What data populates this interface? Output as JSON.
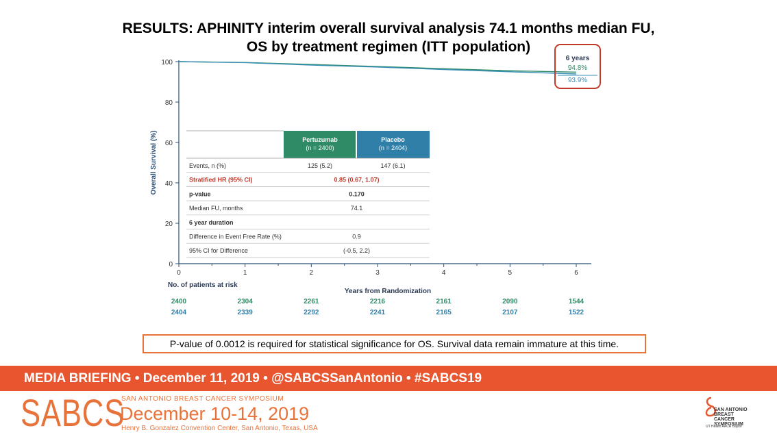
{
  "slide": {
    "title_line1": "RESULTS: APHINITY interim overall survival analysis 74.1 months median FU,",
    "title_line2": "OS by treatment regimen (ITT population)",
    "note": "P-value of 0.0012 is required for statistical significance for OS. Survival data remain immature at this time."
  },
  "chart_data": {
    "type": "line",
    "ylabel": "Overall Survival (%)",
    "xlabel": "Years from Randomization",
    "ylim": [
      0,
      100
    ],
    "xlim": [
      0,
      6
    ],
    "yticks": [
      0,
      20,
      40,
      60,
      80,
      100
    ],
    "xticks": [
      0,
      1,
      2,
      3,
      4,
      5,
      6
    ],
    "series": [
      {
        "name": "Pertuzumab",
        "color": "#2e8b66",
        "x": [
          0,
          1,
          2,
          3,
          4,
          5,
          6
        ],
        "values": [
          100,
          99.6,
          98.6,
          97.6,
          96.5,
          95.5,
          94.8
        ]
      },
      {
        "name": "Placebo",
        "color": "#3a8fb7",
        "x": [
          0,
          1,
          2,
          3,
          4,
          5,
          6
        ],
        "values": [
          100,
          99.5,
          98.3,
          97.3,
          96.1,
          95.0,
          93.9
        ]
      }
    ],
    "callout": {
      "label": "6 years",
      "pertuzumab": "94.8%",
      "placebo": "93.9%"
    },
    "risk_table": {
      "label": "No. of patients at risk",
      "pertuzumab": [
        "2400",
        "2304",
        "2261",
        "2216",
        "2161",
        "2090",
        "1544"
      ],
      "placebo": [
        "2404",
        "2339",
        "2292",
        "2241",
        "2165",
        "2107",
        "1522"
      ]
    },
    "inset_table": {
      "headers": [
        {
          "name": "Pertuzumab",
          "n": "(n = 2400)"
        },
        {
          "name": "Placebo",
          "n": "(n = 2404)"
        }
      ],
      "rows": [
        {
          "label": "Events, n (%)",
          "a": "125 (5.2)",
          "b": "147 (6.1)",
          "style": "normal"
        },
        {
          "label": "Stratified HR (95% CI)",
          "merged": "0.85 (0.67, 1.07)",
          "style": "red"
        },
        {
          "label": "p-value",
          "merged": "0.170",
          "style": "bold"
        },
        {
          "label": "Median FU, months",
          "merged": "74.1",
          "style": "normal"
        },
        {
          "label": "6 year duration",
          "merged": "",
          "style": "bold"
        },
        {
          "label": "Difference in Event Free Rate (%)",
          "merged": "0.9",
          "style": "normal"
        },
        {
          "label": "95% CI for Difference",
          "merged": "(-0.5, 2.2)",
          "style": "normal"
        }
      ]
    }
  },
  "footer": {
    "briefing": "MEDIA BRIEFING  •  December 11, 2019  •  @SABCSSanAntonio  •  #SABCS19",
    "logo": "SABCS",
    "symposium": "SAN ANTONIO BREAST CANCER SYMPOSIUM",
    "dates": "December 10-14, 2019",
    "venue": "Henry B. Gonzalez Convention Center, San Antonio, Texas, USA",
    "right_logo": "SAN ANTONIO BREAST CANCER SYMPOSIUM",
    "right_logo_sub": "UT Health  AACR  Baylor"
  },
  "colors": {
    "accent": "#e8562f",
    "teal": "#2e8b66",
    "blue": "#2f7fa8",
    "red": "#c0392b",
    "axis": "#2b4f73"
  }
}
